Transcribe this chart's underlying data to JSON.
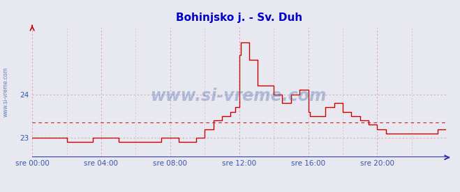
{
  "title": "Bohinjsko j. - Sv. Duh",
  "title_color": "#0000cc",
  "title_fontsize": 11,
  "background_color": "#e8e8f0",
  "plot_bg_color": "#e8e8f0",
  "xlim_hours": [
    0,
    24
  ],
  "ylim": [
    22.55,
    25.55
  ],
  "yticks": [
    23,
    24
  ],
  "xtick_labels": [
    "sre 00:00",
    "sre 04:00",
    "sre 08:00",
    "sre 12:00",
    "sre 16:00",
    "sre 20:00"
  ],
  "xtick_positions": [
    0,
    4,
    8,
    12,
    16,
    20
  ],
  "watermark": "www.si-vreme.com",
  "watermark_color": "#4466aa",
  "watermark_alpha": 0.35,
  "side_label": "www.si-vreme.com",
  "grid_color": "#cc4444",
  "grid_alpha": 0.45,
  "line_color_temp": "#cc0000",
  "avg_line_y": 23.35,
  "avg_line_color": "#cc0000",
  "legend_temp_color": "#cc0000",
  "legend_pretok_color": "#00aa00",
  "legend_text_color": "#3355aa",
  "axis_color": "#3333aa",
  "tick_color": "#3355aa",
  "temp_data_x": [
    0,
    2.0,
    3.5,
    5.0,
    7.5,
    8.5,
    9.5,
    10.0,
    10.5,
    11.0,
    11.5,
    11.75,
    12.0,
    12.083,
    12.5,
    12.583,
    13.0,
    13.083,
    13.5,
    14.0,
    14.083,
    14.5,
    15.0,
    15.5,
    15.583,
    16.0,
    16.083,
    16.5,
    17.0,
    17.5,
    18.0,
    18.5,
    19.0,
    19.5,
    20.0,
    20.5,
    21.0,
    21.5,
    22.0,
    23.0,
    23.5,
    24.0
  ],
  "temp_data_y": [
    23.0,
    22.9,
    23.0,
    22.9,
    23.0,
    22.9,
    23.0,
    23.2,
    23.4,
    23.5,
    23.6,
    23.7,
    24.9,
    25.2,
    25.2,
    24.8,
    24.8,
    24.2,
    24.2,
    24.0,
    24.0,
    23.8,
    24.0,
    24.1,
    24.1,
    23.6,
    23.5,
    23.5,
    23.7,
    23.8,
    23.6,
    23.5,
    23.4,
    23.3,
    23.2,
    23.1,
    23.1,
    23.1,
    23.1,
    23.1,
    23.2,
    23.2
  ]
}
